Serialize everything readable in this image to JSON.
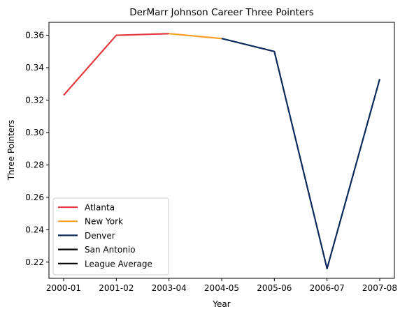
{
  "chart_data": {
    "type": "line",
    "title": "DerMarr Johnson Career Three Pointers",
    "xlabel": "Year",
    "ylabel": "Three Pointers",
    "categories": [
      "2000-01",
      "2001-02",
      "2003-04",
      "2004-05",
      "2005-06",
      "2006-07",
      "2007-08"
    ],
    "ylim": [
      0.21,
      0.368
    ],
    "yticks": [
      0.22,
      0.24,
      0.26,
      0.28,
      0.3,
      0.32,
      0.34,
      0.36
    ],
    "ytick_labels": [
      "0.22",
      "0.24",
      "0.26",
      "0.28",
      "0.30",
      "0.32",
      "0.34",
      "0.36"
    ],
    "grid": false,
    "legend_position": "lower-left",
    "series": [
      {
        "name": "Atlanta",
        "color": "#e03a3e",
        "points": [
          [
            "2000-01",
            0.323
          ],
          [
            "2001-02",
            0.36
          ],
          [
            "2003-04",
            0.361
          ]
        ]
      },
      {
        "name": "New York",
        "color": "#f5a12b",
        "points": [
          [
            "2003-04",
            0.361
          ],
          [
            "2004-05",
            0.358
          ]
        ]
      },
      {
        "name": "Denver",
        "color": "#0d2a5c",
        "points": [
          [
            "2004-05",
            0.358
          ],
          [
            "2005-06",
            0.35
          ],
          [
            "2006-07",
            0.216
          ],
          [
            "2007-08",
            0.333
          ]
        ]
      },
      {
        "name": "San Antonio",
        "color": "#000000",
        "points": []
      },
      {
        "name": "League Average",
        "color": "#000000",
        "points": []
      }
    ]
  }
}
